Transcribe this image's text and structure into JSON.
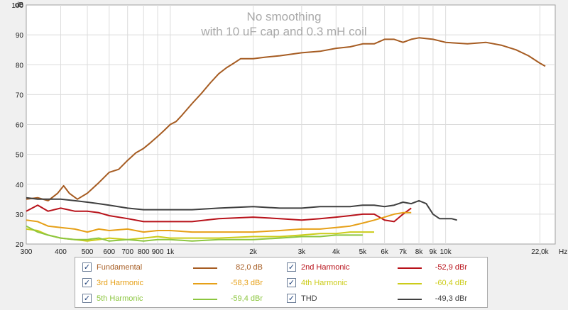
{
  "chart_data": {
    "type": "line",
    "title": "No smoothing",
    "subtitle": "with 10 uF cap and 0.3 mH coil",
    "ylabel": "dB",
    "xunit": "Hz",
    "xscale": "log",
    "xlim": [
      300,
      25000
    ],
    "ylim": [
      20,
      100
    ],
    "y_ticks": [
      20,
      30,
      40,
      50,
      60,
      70,
      80,
      90,
      100
    ],
    "x_ticks": [
      {
        "value": 300,
        "label": "300"
      },
      {
        "value": 400,
        "label": "400"
      },
      {
        "value": 500,
        "label": "500"
      },
      {
        "value": 600,
        "label": "600"
      },
      {
        "value": 700,
        "label": "700"
      },
      {
        "value": 800,
        "label": "800"
      },
      {
        "value": 900,
        "label": "900"
      },
      {
        "value": 1000,
        "label": "1k"
      },
      {
        "value": 2000,
        "label": "2k"
      },
      {
        "value": 3000,
        "label": "3k"
      },
      {
        "value": 4000,
        "label": "4k"
      },
      {
        "value": 5000,
        "label": "5k"
      },
      {
        "value": 6000,
        "label": "6k"
      },
      {
        "value": 7000,
        "label": "7k"
      },
      {
        "value": 8000,
        "label": "8k"
      },
      {
        "value": 9000,
        "label": "9k"
      },
      {
        "value": 10000,
        "label": "10k"
      },
      {
        "value": 22000,
        "label": "22,0k"
      }
    ],
    "grid": true,
    "series": [
      {
        "name": "Fundamental",
        "value_label": "82,0 dB",
        "color": "#a65c22",
        "points": [
          [
            300,
            35
          ],
          [
            330,
            35.5
          ],
          [
            360,
            34.5
          ],
          [
            390,
            37
          ],
          [
            410,
            39.5
          ],
          [
            430,
            37
          ],
          [
            460,
            35
          ],
          [
            500,
            37
          ],
          [
            550,
            40.5
          ],
          [
            600,
            44
          ],
          [
            650,
            45
          ],
          [
            700,
            48
          ],
          [
            750,
            50.5
          ],
          [
            800,
            52
          ],
          [
            850,
            54
          ],
          [
            900,
            56
          ],
          [
            950,
            58
          ],
          [
            1000,
            60
          ],
          [
            1050,
            61
          ],
          [
            1100,
            63
          ],
          [
            1200,
            67
          ],
          [
            1300,
            70.5
          ],
          [
            1400,
            74
          ],
          [
            1500,
            77
          ],
          [
            1600,
            79
          ],
          [
            1700,
            80.5
          ],
          [
            1800,
            82
          ],
          [
            2000,
            82
          ],
          [
            2200,
            82.5
          ],
          [
            2500,
            83
          ],
          [
            3000,
            84
          ],
          [
            3500,
            84.5
          ],
          [
            4000,
            85.5
          ],
          [
            4500,
            86
          ],
          [
            5000,
            87
          ],
          [
            5500,
            87
          ],
          [
            6000,
            88.5
          ],
          [
            6500,
            88.5
          ],
          [
            7000,
            87.5
          ],
          [
            7500,
            88.5
          ],
          [
            8000,
            89
          ],
          [
            9000,
            88.5
          ],
          [
            10000,
            87.5
          ],
          [
            12000,
            87
          ],
          [
            14000,
            87.5
          ],
          [
            16000,
            86.5
          ],
          [
            18000,
            85
          ],
          [
            20000,
            83
          ],
          [
            22000,
            80.5
          ],
          [
            23000,
            79.5
          ]
        ]
      },
      {
        "name": "2nd Harmonic",
        "value_label": "-52,9 dBr",
        "color": "#b8121a",
        "points": [
          [
            300,
            31
          ],
          [
            330,
            33
          ],
          [
            360,
            31
          ],
          [
            400,
            32
          ],
          [
            450,
            31
          ],
          [
            500,
            31
          ],
          [
            550,
            30.5
          ],
          [
            600,
            29.5
          ],
          [
            700,
            28.5
          ],
          [
            800,
            27.5
          ],
          [
            900,
            27.5
          ],
          [
            1000,
            27.5
          ],
          [
            1200,
            27.5
          ],
          [
            1500,
            28.5
          ],
          [
            2000,
            29
          ],
          [
            2500,
            28.5
          ],
          [
            3000,
            28
          ],
          [
            3500,
            28.5
          ],
          [
            4000,
            29
          ],
          [
            4500,
            29.5
          ],
          [
            5000,
            30
          ],
          [
            5500,
            30
          ],
          [
            6000,
            28
          ],
          [
            6500,
            27.5
          ],
          [
            7000,
            30
          ],
          [
            7500,
            32
          ]
        ]
      },
      {
        "name": "3rd Harmonic",
        "value_label": "-58,3 dBr",
        "color": "#e6a018",
        "points": [
          [
            300,
            28
          ],
          [
            330,
            27.5
          ],
          [
            360,
            26
          ],
          [
            400,
            25.5
          ],
          [
            450,
            25
          ],
          [
            500,
            24
          ],
          [
            550,
            25
          ],
          [
            600,
            24.5
          ],
          [
            700,
            25
          ],
          [
            800,
            24
          ],
          [
            900,
            24.5
          ],
          [
            1000,
            24.5
          ],
          [
            1200,
            24
          ],
          [
            1500,
            24
          ],
          [
            2000,
            24
          ],
          [
            2500,
            24.5
          ],
          [
            3000,
            25
          ],
          [
            3500,
            25
          ],
          [
            4000,
            25.5
          ],
          [
            4500,
            26
          ],
          [
            5000,
            27
          ],
          [
            5500,
            28
          ],
          [
            6000,
            29
          ],
          [
            6500,
            30
          ],
          [
            7000,
            30.5
          ],
          [
            7500,
            30.5
          ]
        ]
      },
      {
        "name": "4th Harmonic",
        "value_label": "-60,4 dBr",
        "color": "#cccc1a",
        "points": [
          [
            300,
            25
          ],
          [
            330,
            24.5
          ],
          [
            360,
            23
          ],
          [
            400,
            22
          ],
          [
            450,
            21.5
          ],
          [
            500,
            21
          ],
          [
            550,
            21.5
          ],
          [
            600,
            22
          ],
          [
            700,
            21.5
          ],
          [
            800,
            22
          ],
          [
            900,
            22.5
          ],
          [
            1000,
            22
          ],
          [
            1200,
            22
          ],
          [
            1500,
            22
          ],
          [
            2000,
            22.5
          ],
          [
            2500,
            22.5
          ],
          [
            3000,
            23
          ],
          [
            3500,
            23.5
          ],
          [
            4000,
            23.5
          ],
          [
            4500,
            24
          ],
          [
            5000,
            24
          ],
          [
            5500,
            24
          ]
        ]
      },
      {
        "name": "5th Harmonic",
        "value_label": "-59,4 dBr",
        "color": "#8cc63f",
        "points": [
          [
            300,
            26
          ],
          [
            330,
            24
          ],
          [
            360,
            23
          ],
          [
            400,
            22
          ],
          [
            450,
            21.5
          ],
          [
            500,
            21.5
          ],
          [
            550,
            22
          ],
          [
            600,
            21
          ],
          [
            700,
            21.5
          ],
          [
            800,
            21
          ],
          [
            900,
            21.5
          ],
          [
            1000,
            21.5
          ],
          [
            1200,
            21
          ],
          [
            1500,
            21.5
          ],
          [
            2000,
            21.5
          ],
          [
            2500,
            22
          ],
          [
            3000,
            22.5
          ],
          [
            3500,
            22.5
          ],
          [
            4000,
            23
          ],
          [
            4500,
            23
          ],
          [
            5000,
            23
          ]
        ]
      },
      {
        "name": "THD",
        "value_label": "-49,3 dBr",
        "color": "#404040",
        "points": [
          [
            300,
            35.5
          ],
          [
            330,
            35
          ],
          [
            360,
            35
          ],
          [
            400,
            35
          ],
          [
            450,
            34.5
          ],
          [
            500,
            34
          ],
          [
            550,
            33.5
          ],
          [
            600,
            33
          ],
          [
            700,
            32
          ],
          [
            800,
            31.5
          ],
          [
            900,
            31.5
          ],
          [
            1000,
            31.5
          ],
          [
            1200,
            31.5
          ],
          [
            1500,
            32
          ],
          [
            2000,
            32.5
          ],
          [
            2500,
            32
          ],
          [
            3000,
            32
          ],
          [
            3500,
            32.5
          ],
          [
            4000,
            32.5
          ],
          [
            4500,
            32.5
          ],
          [
            5000,
            33
          ],
          [
            5500,
            33
          ],
          [
            6000,
            32.5
          ],
          [
            6500,
            33
          ],
          [
            7000,
            34
          ],
          [
            7500,
            33.5
          ],
          [
            8000,
            34.5
          ],
          [
            8500,
            33.5
          ],
          [
            9000,
            30
          ],
          [
            9500,
            28.5
          ],
          [
            10000,
            28.5
          ],
          [
            10500,
            28.5
          ],
          [
            11000,
            28
          ]
        ]
      }
    ]
  }
}
